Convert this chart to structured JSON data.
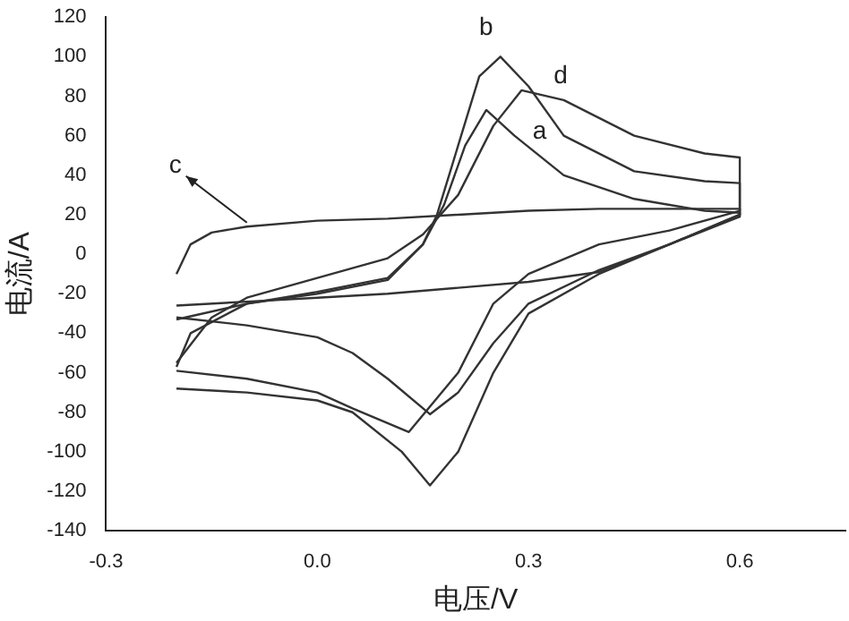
{
  "chart_data": {
    "type": "line",
    "xlabel": "电压/V",
    "ylabel": "电流/A",
    "xlim": [
      -0.3,
      0.75
    ],
    "xticks": [
      -0.3,
      {
        "value": 0,
        "label": "0.0"
      },
      0.3,
      0.6
    ],
    "ylim": [
      -140,
      120
    ],
    "yticks": [
      -140,
      -120,
      -100,
      -80,
      -60,
      -40,
      -20,
      0,
      20,
      40,
      60,
      80,
      100,
      120
    ],
    "grid": false,
    "legend": false,
    "marker": "none",
    "line_style": "solid",
    "series": [
      {
        "color": "#333333",
        "x": [
          -0.2,
          -0.1,
          0,
          0.1,
          0.15,
          0.18,
          0.21,
          0.24,
          0.28,
          0.35,
          0.45,
          0.55,
          0.6,
          0.6,
          0.5,
          0.4,
          0.3,
          0.25,
          0.2,
          0.16,
          0.1,
          0.05,
          0,
          -0.1,
          -0.2
        ],
        "values": [
          -33,
          -25,
          -20,
          -13,
          5,
          25,
          55,
          73,
          60,
          40,
          28,
          22,
          21,
          20,
          5,
          -8,
          -25,
          -45,
          -70,
          -81,
          -63,
          -50,
          -42,
          -36,
          -32
        ]
      },
      {
        "color": "#333333",
        "x": [
          -0.2,
          -0.18,
          -0.1,
          0,
          0.1,
          0.15,
          0.17,
          0.2,
          0.23,
          0.26,
          0.3,
          0.35,
          0.45,
          0.55,
          0.6,
          0.6,
          0.5,
          0.4,
          0.3,
          0.25,
          0.2,
          0.16,
          0.12,
          0.05,
          0,
          -0.1,
          -0.2
        ],
        "values": [
          -57,
          -40,
          -25,
          -19,
          -12,
          5,
          20,
          55,
          90,
          100,
          85,
          60,
          42,
          37,
          36,
          20,
          5,
          -10,
          -30,
          -60,
          -100,
          -117,
          -100,
          -80,
          -74,
          -70,
          -68
        ]
      },
      {
        "color": "#333333",
        "x": [
          -0.2,
          -0.18,
          -0.15,
          -0.1,
          0,
          0.1,
          0.2,
          0.3,
          0.4,
          0.5,
          0.6,
          0.6,
          0.5,
          0.4,
          0.3,
          0.2,
          0.1,
          0,
          -0.1,
          -0.2
        ],
        "values": [
          -10,
          5,
          11,
          14,
          17,
          18,
          20,
          22,
          23,
          23,
          23,
          19,
          5,
          -9,
          -14,
          -17,
          -20,
          -22,
          -24,
          -26
        ]
      },
      {
        "color": "#333333",
        "x": [
          -0.2,
          -0.15,
          -0.1,
          0,
          0.1,
          0.15,
          0.2,
          0.25,
          0.29,
          0.35,
          0.45,
          0.55,
          0.6,
          0.6,
          0.5,
          0.4,
          0.3,
          0.25,
          0.2,
          0.13,
          0.05,
          0,
          -0.1,
          -0.2
        ],
        "values": [
          -55,
          -32,
          -22,
          -12,
          -2,
          10,
          30,
          65,
          83,
          78,
          60,
          51,
          49,
          22,
          12,
          5,
          -10,
          -25,
          -60,
          -90,
          -78,
          -70,
          -63,
          -59
        ]
      }
    ],
    "annotations": [
      {
        "text": "a",
        "x": 0.27,
        "y": 64
      },
      {
        "text": "b",
        "x": 0.26,
        "y": 100
      },
      {
        "text": "c",
        "x": -0.1,
        "y": 16
      },
      {
        "text": "d",
        "x": 0.31,
        "y": 83
      }
    ]
  }
}
